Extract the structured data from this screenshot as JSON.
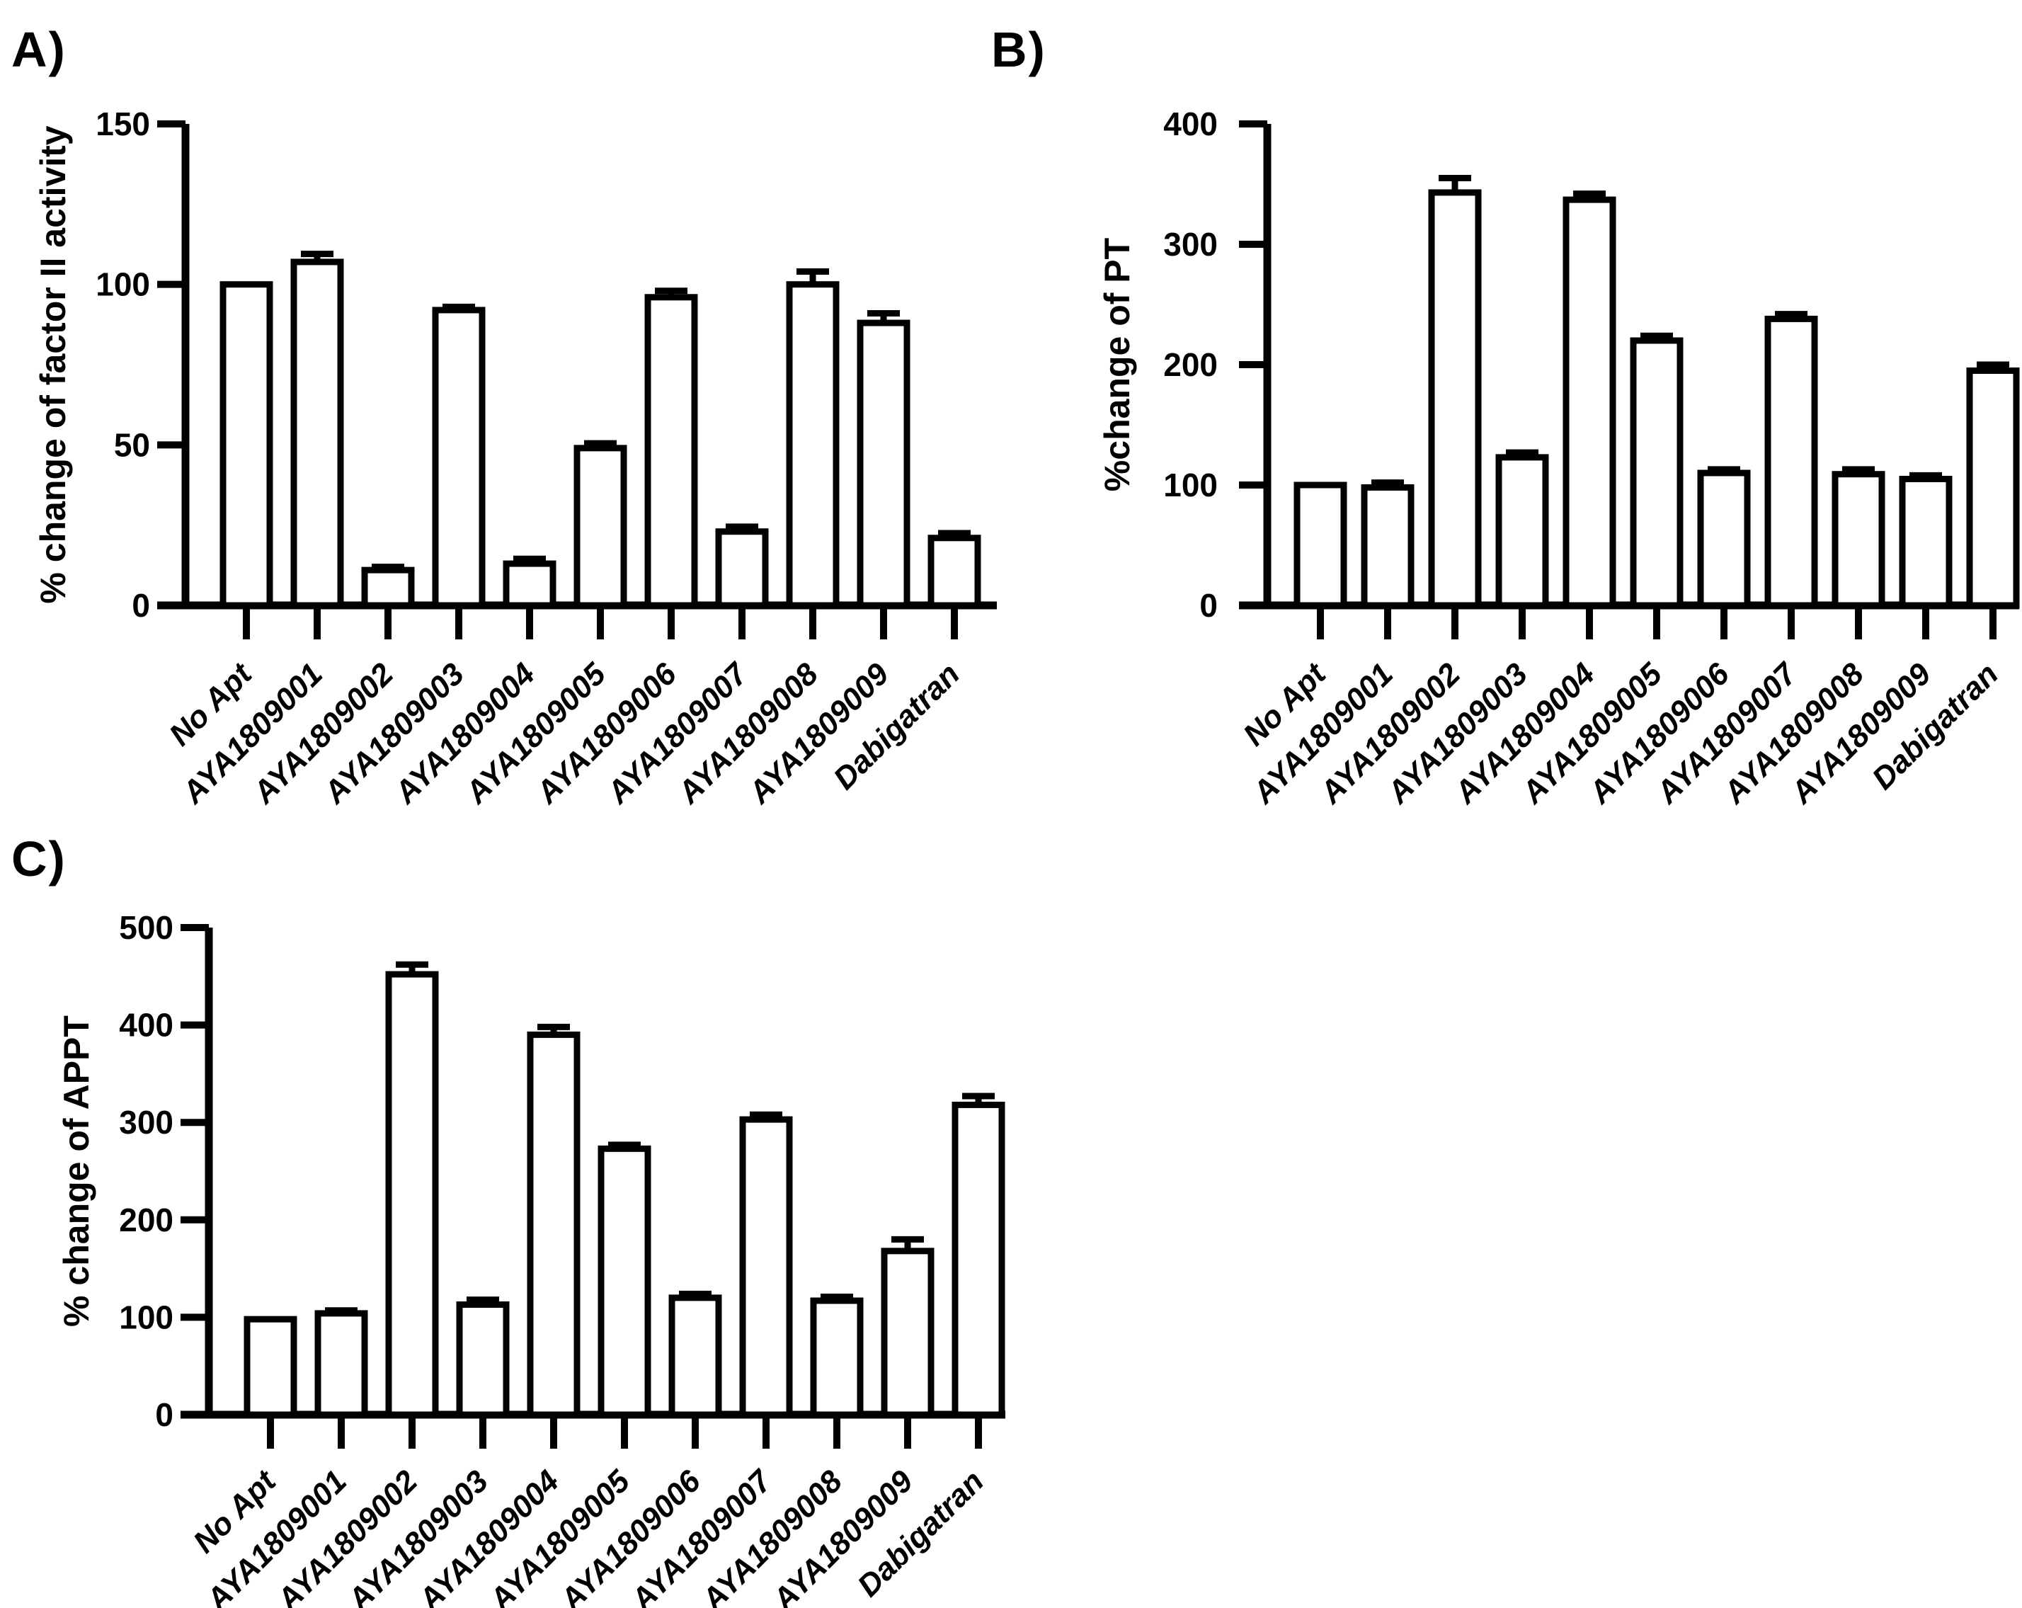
{
  "figure": {
    "background_color": "#ffffff",
    "axis_color": "#000000",
    "text_color": "#000000"
  },
  "chart_data": [
    {
      "type": "bar",
      "panel_label": "A)",
      "title": "",
      "xlabel": "",
      "ylabel": "% change of factor II activity",
      "ylim": [
        0,
        150
      ],
      "yticks": [
        0,
        50,
        100,
        150
      ],
      "grid": false,
      "legend": "none",
      "bar_fill": "#ffffff",
      "bar_stroke": "#000000",
      "categories": [
        "No Apt",
        "AYA1809001",
        "AYA1809002",
        "AYA1809003",
        "AYA1809004",
        "AYA1809005",
        "AYA1809006",
        "AYA1809007",
        "AYA1809008",
        "AYA1809009",
        "Dabigatran"
      ],
      "values": [
        100,
        107,
        11,
        92,
        13,
        49,
        96,
        23,
        100,
        88,
        21
      ],
      "errors": [
        0,
        2.5,
        1,
        1,
        1.5,
        1.5,
        2,
        1.5,
        4,
        3,
        1.5
      ]
    },
    {
      "type": "bar",
      "panel_label": "B)",
      "title": "",
      "xlabel": "",
      "ylabel": "%change of PT",
      "ylim": [
        0,
        400
      ],
      "yticks": [
        0,
        100,
        200,
        300,
        400
      ],
      "grid": false,
      "legend": "none",
      "bar_fill": "#ffffff",
      "bar_stroke": "#000000",
      "categories": [
        "No Apt",
        "AYA1809001",
        "AYA1809002",
        "AYA1809003",
        "AYA1809004",
        "AYA1809005",
        "AYA1809006",
        "AYA1809007",
        "AYA1809008",
        "AYA1809009",
        "Dabigatran"
      ],
      "values": [
        100,
        98,
        343,
        123,
        337,
        220,
        110,
        238,
        109,
        105,
        195
      ],
      "errors": [
        0,
        4,
        12,
        4,
        5,
        4,
        3,
        4,
        4,
        3,
        5
      ]
    },
    {
      "type": "bar",
      "panel_label": "C)",
      "title": "",
      "xlabel": "",
      "ylabel": "% change of APPT",
      "ylim": [
        0,
        500
      ],
      "yticks": [
        0,
        100,
        200,
        300,
        400,
        500
      ],
      "grid": false,
      "legend": "none",
      "bar_fill": "#ffffff",
      "bar_stroke": "#000000",
      "categories": [
        "No Apt",
        "AYA1809001",
        "AYA1809002",
        "AYA1809003",
        "AYA1809004",
        "AYA1809005",
        "AYA1809006",
        "AYA1809007",
        "AYA1809008",
        "AYA1809009",
        "Dabigatran"
      ],
      "values": [
        98,
        104,
        452,
        113,
        390,
        273,
        120,
        303,
        117,
        168,
        318
      ],
      "errors": [
        0,
        3,
        10,
        5,
        8,
        4,
        4,
        5,
        4,
        12,
        9
      ]
    }
  ]
}
